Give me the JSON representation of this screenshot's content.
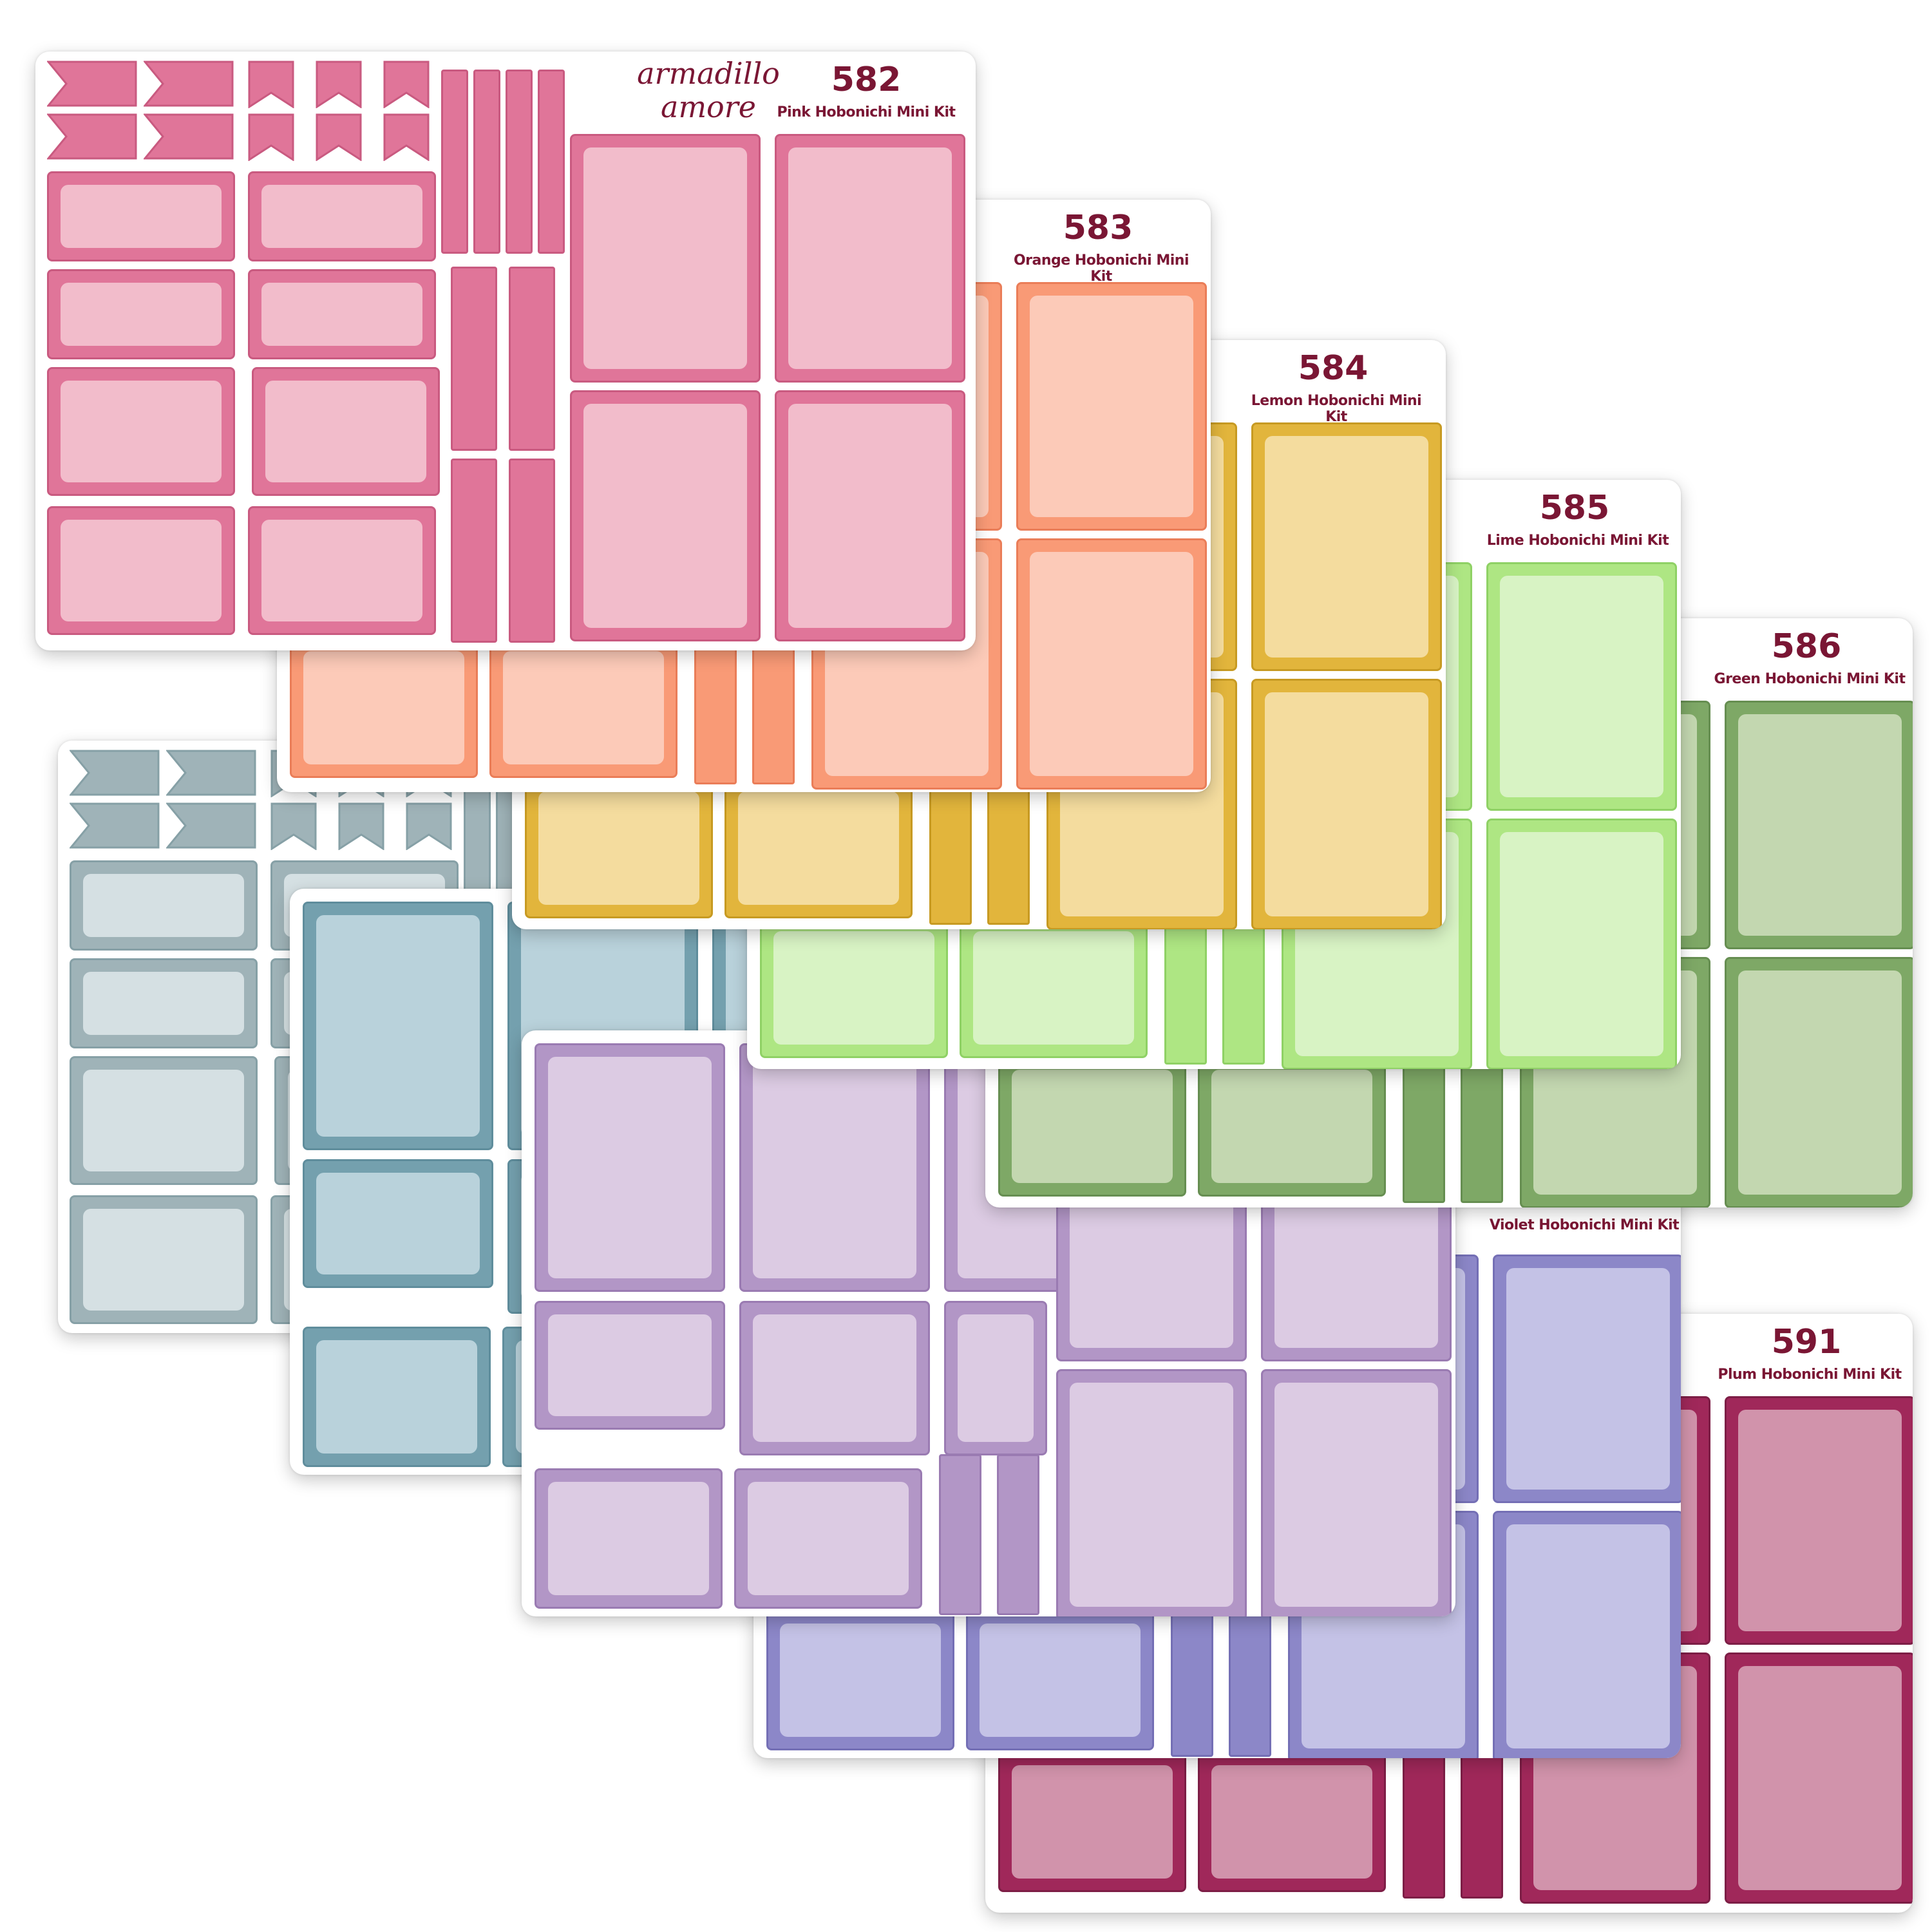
{
  "brand": {
    "line1": "armadillo",
    "line2": "amore"
  },
  "sheets": [
    {
      "id": "blue",
      "number": "",
      "name": "",
      "dark": "#9fb3b8",
      "light": "#d5e0e3",
      "border": "#86a0a6"
    },
    {
      "id": "teal",
      "number": "",
      "name": "",
      "dark": "#74a0ae",
      "light": "#b9d2db",
      "border": "#5f8d9c"
    },
    {
      "id": "plum",
      "number": "591",
      "name": "Plum Hobonichi Mini Kit",
      "dark": "#a0285a",
      "light": "#d193ab",
      "border": "#7d1e46"
    },
    {
      "id": "violet",
      "number": "",
      "name": "Violet Hobonichi Mini Kit",
      "dark": "#8c87c8",
      "light": "#c4c2e6",
      "border": "#746fb5"
    },
    {
      "id": "purple",
      "number": "",
      "name": "",
      "dark": "#b296c6",
      "light": "#dccbe3",
      "border": "#9a7bb2"
    },
    {
      "id": "green",
      "number": "586",
      "name": "Green Hobonichi Mini Kit",
      "dark": "#7ea866",
      "light": "#c3d7b0",
      "border": "#668e51"
    },
    {
      "id": "lime",
      "number": "585",
      "name": "Lime Hobonichi Mini Kit",
      "dark": "#aee683",
      "light": "#d8f3c4",
      "border": "#8fd165"
    },
    {
      "id": "lemon",
      "number": "584",
      "name": "Lemon Hobonichi Mini Kit",
      "dark": "#e2b53c",
      "light": "#f4dc9e",
      "border": "#c79a22"
    },
    {
      "id": "orange",
      "number": "583",
      "name": "Orange Hobonichi Mini Kit",
      "dark": "#f99a76",
      "light": "#fccab8",
      "border": "#ea7d58"
    },
    {
      "id": "pink",
      "number": "582",
      "name": "Pink Hobonichi Mini Kit",
      "dark": "#e07599",
      "light": "#f2bccb",
      "border": "#c95a80"
    }
  ]
}
